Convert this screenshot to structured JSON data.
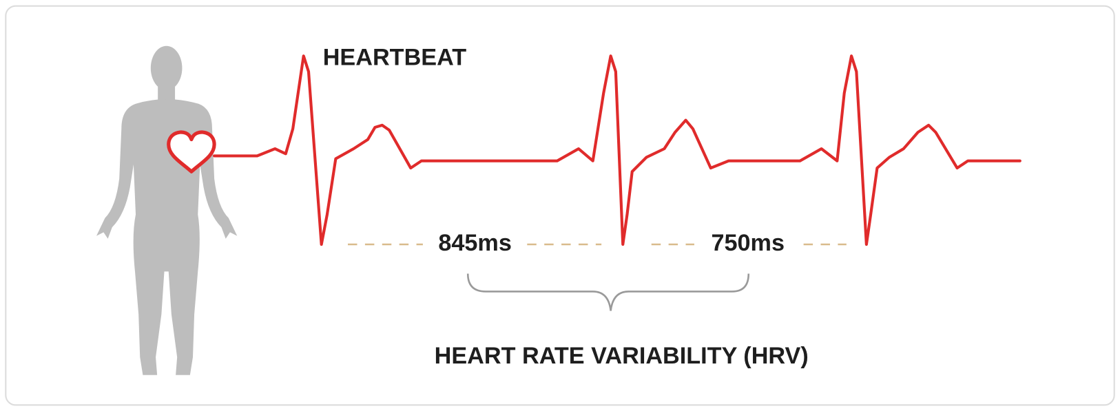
{
  "title": "HEARTBEAT",
  "intervals": [
    {
      "label": "845ms"
    },
    {
      "label": "750ms"
    }
  ],
  "caption": "HEART RATE VARIABILITY (HRV)"
}
